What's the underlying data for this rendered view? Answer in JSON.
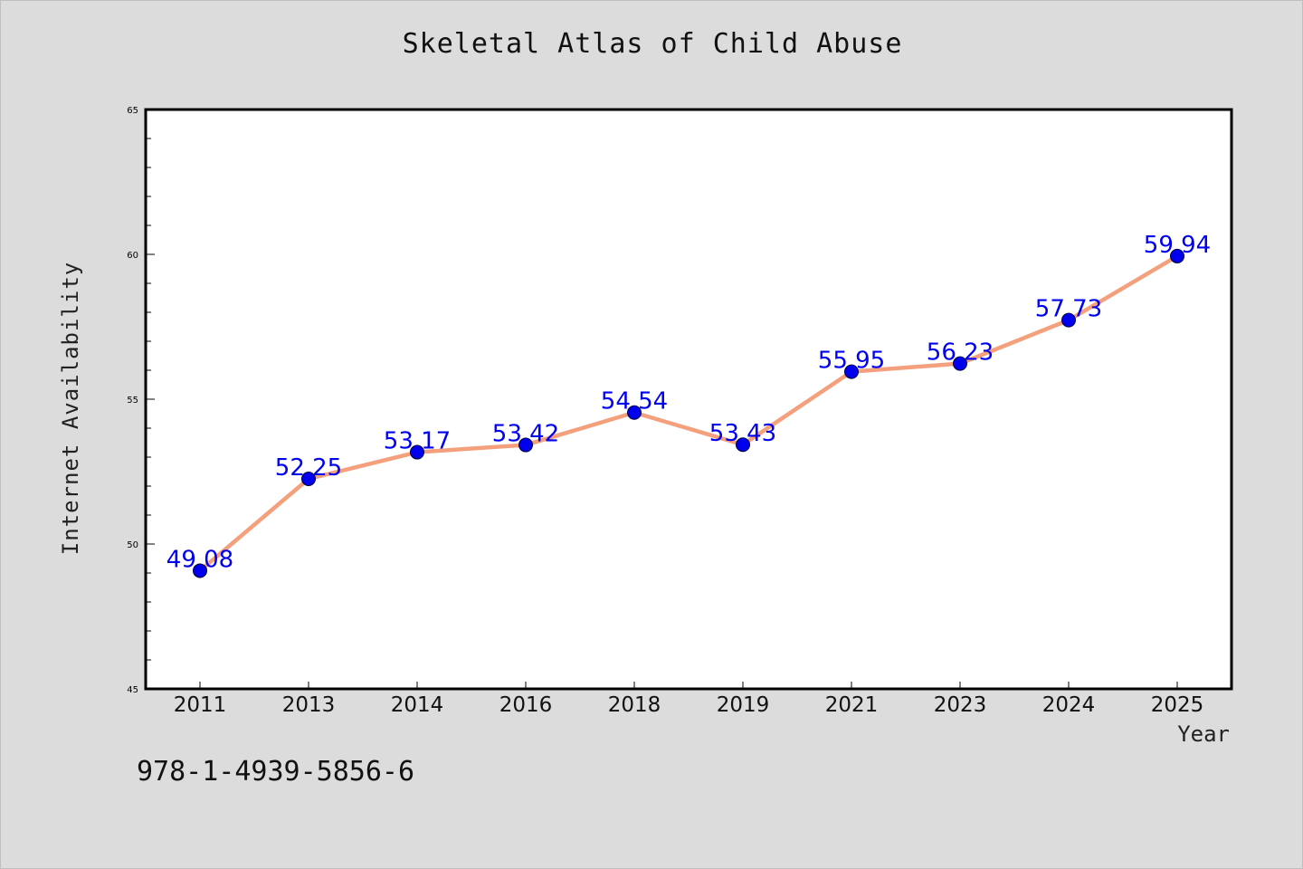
{
  "chart_data": {
    "type": "line",
    "title": "Skeletal Atlas of Child Abuse",
    "xlabel": "Year",
    "ylabel": "Internet Availability",
    "categories": [
      "2011",
      "2013",
      "2014",
      "2016",
      "2018",
      "2019",
      "2021",
      "2023",
      "2024",
      "2025"
    ],
    "series": [
      {
        "values": [
          49.08,
          52.25,
          53.17,
          53.42,
          54.54,
          53.43,
          55.95,
          56.23,
          57.73,
          59.94
        ],
        "labels": [
          "49.08",
          "52.25",
          "53.17",
          "53.42",
          "54.54",
          "53.43",
          "55.95",
          "56.23",
          "57.73",
          "59.94"
        ],
        "line_color": "#f4a07c",
        "marker_color": "#0000ee"
      }
    ],
    "ylim": [
      45,
      65
    ],
    "yticks": [
      "45",
      "50",
      "55",
      "60",
      "65"
    ],
    "grid": false,
    "legend": "none"
  },
  "footnote": "978-1-4939-5856-6",
  "colors": {
    "background": "#dcdcdc",
    "plot_background": "#ffffff",
    "label_color": "#0000ee"
  }
}
